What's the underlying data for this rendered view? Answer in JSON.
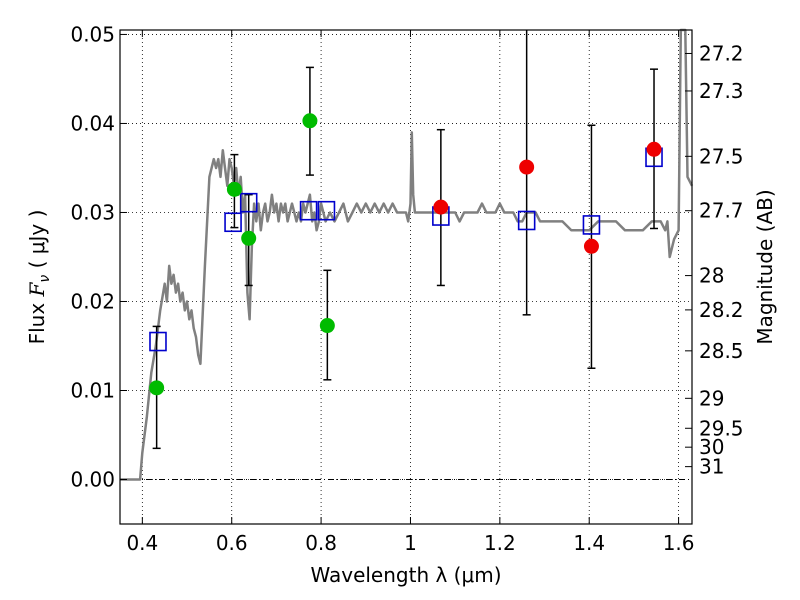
{
  "chart_data": {
    "type": "scatter",
    "xlabel": "Wavelength  λ (μm)",
    "ylabel": "Flux  F_ν  ( μJy )",
    "ylabel_parts": {
      "prefix": "Flux  ",
      "symbol": "F",
      "subscript": "ν",
      "unit": "  ( μJy )"
    },
    "y2label": "Magnitude (AB)",
    "xlim": [
      0.35,
      1.63
    ],
    "ylim": [
      -0.005,
      0.0505
    ],
    "grid": true,
    "grid_style": "dotted",
    "x_ticks": [
      0.4,
      0.6,
      0.8,
      1.0,
      1.2,
      1.4,
      1.6
    ],
    "x_tick_labels": [
      "0.4",
      "0.6",
      "0.8",
      "1",
      "1.2",
      "1.4",
      "1.6"
    ],
    "y_ticks": [
      0.0,
      0.01,
      0.02,
      0.03,
      0.04,
      0.05
    ],
    "y_tick_labels": [
      "0.00",
      "0.01",
      "0.02",
      "0.03",
      "0.04",
      "0.05"
    ],
    "y2_tick_labels": [
      "27.2",
      "27.3",
      "27.5",
      "27.7",
      "28",
      "28.2",
      "28.5",
      "29",
      "29.5",
      "30",
      "31"
    ],
    "y2_tick_mags": [
      27.2,
      27.3,
      27.5,
      27.7,
      28.0,
      28.2,
      28.5,
      29.0,
      29.5,
      30.0,
      31.0
    ],
    "zero_line": {
      "y": 0.0,
      "style": "dash-dot",
      "color": "#000000"
    },
    "colors": {
      "model": "#808080",
      "optical": "#00bb00",
      "nir": "#ee0000",
      "model_box": "#0000cc",
      "errorbar": "#000000"
    },
    "model_spectrum": {
      "x": [
        0.35,
        0.38,
        0.395,
        0.4,
        0.41,
        0.42,
        0.43,
        0.44,
        0.45,
        0.455,
        0.46,
        0.465,
        0.47,
        0.475,
        0.48,
        0.485,
        0.49,
        0.495,
        0.5,
        0.505,
        0.51,
        0.515,
        0.52,
        0.525,
        0.53,
        0.54,
        0.55,
        0.56,
        0.565,
        0.57,
        0.575,
        0.58,
        0.585,
        0.59,
        0.595,
        0.6,
        0.605,
        0.61,
        0.615,
        0.62,
        0.625,
        0.63,
        0.635,
        0.64,
        0.645,
        0.65,
        0.655,
        0.66,
        0.665,
        0.67,
        0.675,
        0.68,
        0.685,
        0.69,
        0.695,
        0.7,
        0.705,
        0.71,
        0.715,
        0.72,
        0.725,
        0.73,
        0.735,
        0.74,
        0.745,
        0.75,
        0.755,
        0.76,
        0.765,
        0.77,
        0.775,
        0.78,
        0.785,
        0.79,
        0.795,
        0.8,
        0.81,
        0.82,
        0.83,
        0.84,
        0.85,
        0.86,
        0.87,
        0.88,
        0.89,
        0.9,
        0.91,
        0.92,
        0.93,
        0.94,
        0.95,
        0.96,
        0.97,
        0.98,
        0.99,
        0.995,
        1.0,
        1.003,
        1.006,
        1.01,
        1.02,
        1.03,
        1.04,
        1.05,
        1.06,
        1.07,
        1.08,
        1.09,
        1.1,
        1.11,
        1.12,
        1.13,
        1.14,
        1.15,
        1.16,
        1.17,
        1.18,
        1.19,
        1.2,
        1.21,
        1.22,
        1.23,
        1.24,
        1.25,
        1.26,
        1.27,
        1.28,
        1.29,
        1.3,
        1.32,
        1.34,
        1.36,
        1.38,
        1.4,
        1.42,
        1.44,
        1.46,
        1.48,
        1.5,
        1.52,
        1.54,
        1.56,
        1.57,
        1.575,
        1.58,
        1.59,
        1.6,
        1.605,
        1.61,
        1.615,
        1.62,
        1.63
      ],
      "y": [
        0.0,
        0.0,
        0.0,
        0.003,
        0.007,
        0.012,
        0.015,
        0.019,
        0.022,
        0.02,
        0.024,
        0.022,
        0.023,
        0.021,
        0.022,
        0.02,
        0.021,
        0.019,
        0.02,
        0.018,
        0.019,
        0.017,
        0.016,
        0.014,
        0.013,
        0.024,
        0.034,
        0.036,
        0.035,
        0.036,
        0.034,
        0.037,
        0.035,
        0.033,
        0.036,
        0.035,
        0.033,
        0.035,
        0.032,
        0.034,
        0.03,
        0.032,
        0.021,
        0.018,
        0.026,
        0.031,
        0.029,
        0.031,
        0.028,
        0.03,
        0.031,
        0.029,
        0.03,
        0.032,
        0.03,
        0.031,
        0.029,
        0.031,
        0.03,
        0.031,
        0.029,
        0.03,
        0.031,
        0.03,
        0.029,
        0.03,
        0.029,
        0.031,
        0.03,
        0.031,
        0.032,
        0.029,
        0.03,
        0.028,
        0.029,
        0.031,
        0.029,
        0.03,
        0.029,
        0.03,
        0.031,
        0.029,
        0.03,
        0.031,
        0.03,
        0.031,
        0.03,
        0.031,
        0.03,
        0.031,
        0.03,
        0.031,
        0.03,
        0.03,
        0.03,
        0.029,
        0.031,
        0.039,
        0.032,
        0.03,
        0.03,
        0.03,
        0.03,
        0.03,
        0.03,
        0.03,
        0.03,
        0.03,
        0.03,
        0.029,
        0.03,
        0.03,
        0.03,
        0.03,
        0.031,
        0.03,
        0.03,
        0.03,
        0.031,
        0.03,
        0.03,
        0.03,
        0.029,
        0.029,
        0.03,
        0.03,
        0.03,
        0.029,
        0.029,
        0.029,
        0.029,
        0.028,
        0.028,
        0.028,
        0.029,
        0.029,
        0.029,
        0.028,
        0.028,
        0.028,
        0.029,
        0.029,
        0.028,
        0.029,
        0.025,
        0.027,
        0.028,
        0.055,
        0.06,
        0.058,
        0.034,
        0.033
      ]
    },
    "series": [
      {
        "name": "",
        "marker": "circle",
        "color": "#00bb00",
        "points": [
          {
            "x": 0.432,
            "y": 0.0103,
            "yerr_low": 0.0035,
            "yerr_high": 0.0172
          },
          {
            "x": 0.606,
            "y": 0.0326,
            "yerr_low": 0.0283,
            "yerr_high": 0.0365
          },
          {
            "x": 0.638,
            "y": 0.0271,
            "yerr_low": 0.0218,
            "yerr_high": 0.032
          },
          {
            "x": 0.775,
            "y": 0.0403,
            "yerr_low": 0.0342,
            "yerr_high": 0.0463
          },
          {
            "x": 0.814,
            "y": 0.0173,
            "yerr_low": 0.0112,
            "yerr_high": 0.0235
          }
        ]
      },
      {
        "name": "",
        "marker": "circle",
        "color": "#ee0000",
        "points": [
          {
            "x": 1.068,
            "y": 0.0306,
            "yerr_low": 0.0218,
            "yerr_high": 0.0393
          },
          {
            "x": 1.26,
            "y": 0.0351,
            "yerr_low": 0.0185,
            "yerr_high": 0.051
          },
          {
            "x": 1.405,
            "y": 0.0262,
            "yerr_low": 0.0125,
            "yerr_high": 0.0398
          },
          {
            "x": 1.545,
            "y": 0.0371,
            "yerr_low": 0.0282,
            "yerr_high": 0.0461
          }
        ]
      },
      {
        "name": "",
        "marker": "square-open",
        "color": "#0000cc",
        "points": [
          {
            "x": 0.435,
            "y": 0.0155
          },
          {
            "x": 0.603,
            "y": 0.0289
          },
          {
            "x": 0.638,
            "y": 0.0311
          },
          {
            "x": 0.772,
            "y": 0.0302
          },
          {
            "x": 0.812,
            "y": 0.0302
          },
          {
            "x": 1.068,
            "y": 0.0296
          },
          {
            "x": 1.26,
            "y": 0.0291
          },
          {
            "x": 1.405,
            "y": 0.0286
          },
          {
            "x": 1.545,
            "y": 0.0362
          }
        ]
      }
    ]
  }
}
